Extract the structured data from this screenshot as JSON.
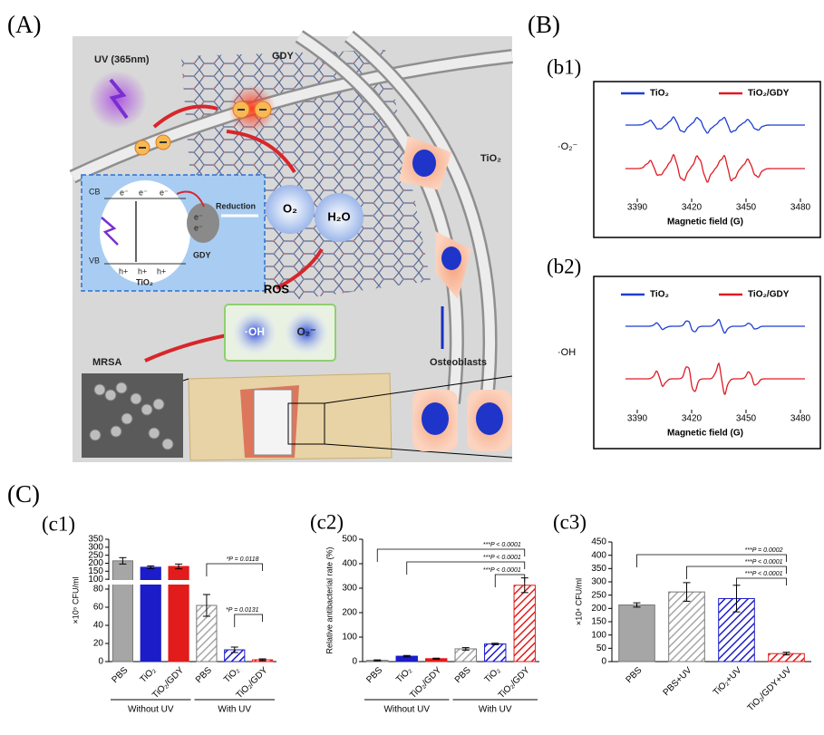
{
  "labels": {
    "A": "(A)",
    "B": "(B)",
    "C": "(C)",
    "b1": "(b1)",
    "b2": "(b2)",
    "c1": "(c1)",
    "c2": "(c2)",
    "c3": "(c3)"
  },
  "diagram": {
    "uv": "UV (365nm)",
    "gdy": "GDY",
    "tio2": "TiO₂",
    "cb": "CB",
    "vb": "VB",
    "electron": "e⁻",
    "hole": "h+",
    "reduction": "Reduction",
    "inset_gdy": "GDY",
    "inset_tio2": "TiO₂",
    "o2": "O₂",
    "h2o": "H₂O",
    "ros": "ROS",
    "oh": "·OH",
    "superoxide": "O₂⁻",
    "mrsa": "MRSA",
    "osteoblasts": "Osteoblasts"
  },
  "spectra": [
    {
      "ylabel": "·O₂⁻",
      "xlabel": "Magnetic field (G)",
      "legend": [
        "TiO₂",
        "TiO₂/GDY"
      ],
      "colors": [
        "#1f3fd0",
        "#e01b24"
      ],
      "xlim": [
        3370,
        3485
      ],
      "xticks": [
        3390,
        3420,
        3450,
        3480
      ]
    },
    {
      "ylabel": "·OH",
      "xlabel": "Magnetic field (G)",
      "legend": [
        "TiO₂",
        "TiO₂/GDY"
      ],
      "colors": [
        "#1f3fd0",
        "#e01b24"
      ],
      "xlim": [
        3370,
        3485
      ],
      "xticks": [
        3390,
        3420,
        3450,
        3480
      ]
    }
  ],
  "chart_data": [
    {
      "type": "bar",
      "ylabel": "×10⁵ CFU/ml",
      "categories": [
        "PBS",
        "TiO₂",
        "TiO₂/GDY",
        "PBS",
        "TiO₂",
        "TiO₂/GDY"
      ],
      "groups": [
        "Without UV",
        "With UV"
      ],
      "values": [
        215,
        175,
        180,
        62,
        13,
        2
      ],
      "errors": [
        20,
        8,
        15,
        12,
        3,
        1
      ],
      "colors": [
        "#a6a6a6",
        "#1c1cc8",
        "#e21b1b",
        "#a6a6a6",
        "#1c1cc8",
        "#e21b1b"
      ],
      "hatched": [
        false,
        false,
        false,
        true,
        true,
        true
      ],
      "ylim": [
        0,
        350
      ],
      "ybreak": [
        85,
        95
      ],
      "yticks": [
        0,
        20,
        40,
        60,
        80,
        100,
        150,
        200,
        250,
        300,
        350
      ],
      "annotations": [
        "*P = 0.0118",
        "*P = 0.0131"
      ]
    },
    {
      "type": "bar",
      "ylabel": "Relative antibacterial rate (%)",
      "categories": [
        "PBS",
        "TiO₂",
        "TiO₂/GDY",
        "PBS",
        "TiO₂",
        "TiO₂/GDY"
      ],
      "groups": [
        "Without UV",
        "With UV"
      ],
      "values": [
        5,
        22,
        12,
        52,
        72,
        312
      ],
      "errors": [
        2,
        3,
        2,
        5,
        3,
        30
      ],
      "colors": [
        "#a6a6a6",
        "#1c1cc8",
        "#e21b1b",
        "#a6a6a6",
        "#1c1cc8",
        "#e21b1b"
      ],
      "hatched": [
        false,
        false,
        false,
        true,
        true,
        true
      ],
      "ylim": [
        0,
        500
      ],
      "yticks": [
        0,
        100,
        200,
        300,
        400,
        500
      ],
      "annotations": [
        "***P < 0.0001",
        "***P < 0.0001",
        "***P < 0.0001"
      ]
    },
    {
      "type": "bar",
      "ylabel": "×10⁴ CFU/ml",
      "categories": [
        "PBS",
        "PBS+UV",
        "TiO₂+UV",
        "TiO₂/GDY+UV"
      ],
      "values": [
        213,
        262,
        237,
        30
      ],
      "errors": [
        8,
        35,
        50,
        5
      ],
      "colors": [
        "#a6a6a6",
        "#a6a6a6",
        "#1c1cc8",
        "#e21b1b"
      ],
      "hatched": [
        false,
        true,
        true,
        true
      ],
      "ylim": [
        0,
        450
      ],
      "yticks": [
        0,
        50,
        100,
        150,
        200,
        250,
        300,
        350,
        400,
        450
      ],
      "annotations": [
        "***P = 0.0002",
        "***P < 0.0001",
        "***P < 0.0001"
      ]
    }
  ]
}
